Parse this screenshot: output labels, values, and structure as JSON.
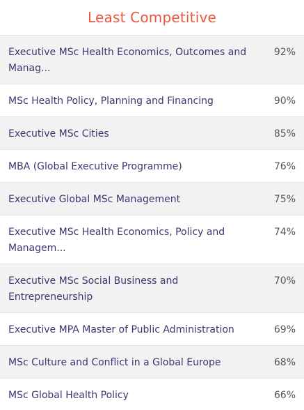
{
  "panel": {
    "title": "Least Competitive",
    "accent_color": "#e8573e",
    "rows": [
      {
        "name": "Executive MSc Health Economics, Outcomes and Manag...",
        "value": "92%"
      },
      {
        "name": "MSc Health Policy, Planning and Financing",
        "value": "90%"
      },
      {
        "name": "Executive MSc Cities",
        "value": "85%"
      },
      {
        "name": "MBA (Global Executive Programme)",
        "value": "76%"
      },
      {
        "name": "Executive Global MSc Management",
        "value": "75%"
      },
      {
        "name": "Executive MSc Health Economics, Policy and Managem...",
        "value": "74%"
      },
      {
        "name": "Executive MSc Social Business and Entrepreneurship",
        "value": "70%"
      },
      {
        "name": "Executive MPA Master of Public Administration",
        "value": "69%"
      },
      {
        "name": "MSc Culture and Conflict in a Global Europe",
        "value": "68%"
      },
      {
        "name": "MSc Global Health Policy",
        "value": "66%"
      }
    ]
  }
}
